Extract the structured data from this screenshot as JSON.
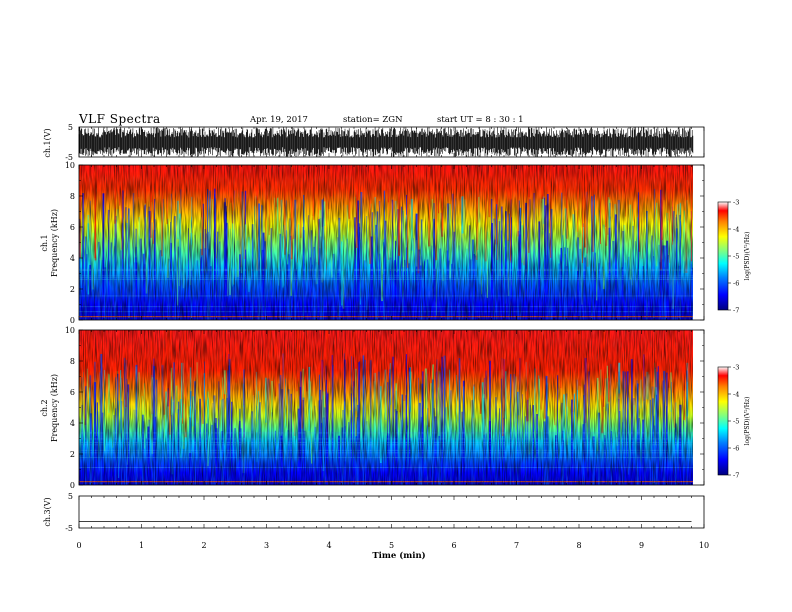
{
  "header": {
    "title": "VLF Spectra",
    "date": "Apr. 19, 2017",
    "station": "station= ZGN",
    "start": "start  UT  =   8 : 30 : 1"
  },
  "colors": {
    "spectrogram_scale": [
      "#00007f",
      "#0000ff",
      "#0080ff",
      "#00ffff",
      "#80ff80",
      "#ffff00",
      "#ff8000",
      "#ff0000"
    ]
  },
  "chart_data": [
    {
      "type": "line",
      "panel": "waveform-ch1",
      "ylabel": "ch.1(V)",
      "ylim": [
        -5,
        5
      ],
      "y_ticks": [
        "5",
        "-5"
      ],
      "x_range_min": [
        0,
        10
      ],
      "description_series": "dense noise waveform, amplitude roughly -5 to 5 V"
    },
    {
      "type": "heatmap",
      "panel": "spectrogram-ch1",
      "ylabel": "ch.1 Frequency (kHz)",
      "ylim": [
        0,
        10
      ],
      "y_ticks": [
        "0",
        "2",
        "4",
        "6",
        "8",
        "10"
      ],
      "xlim": [
        0,
        10
      ],
      "colorbar": {
        "label": "log(PSD)(V²/Hz)",
        "range": [
          -7,
          -3
        ],
        "ticks": [
          "-3",
          "-4",
          "-5",
          "-6",
          "-7"
        ]
      }
    },
    {
      "type": "heatmap",
      "panel": "spectrogram-ch2",
      "ylabel": "ch.2 Frequency (kHz)",
      "ylim": [
        0,
        10
      ],
      "y_ticks": [
        "0",
        "2",
        "4",
        "6",
        "8",
        "10"
      ],
      "xlim": [
        0,
        10
      ],
      "colorbar": {
        "label": "log(PSD)(V²/Hz)",
        "range": [
          -7,
          -3
        ],
        "ticks": [
          "-3",
          "-4",
          "-5",
          "-6",
          "-7"
        ]
      }
    },
    {
      "type": "line",
      "panel": "waveform-ch3",
      "ylabel": "ch.3(V)",
      "ylim": [
        -5,
        5
      ],
      "y_ticks": [
        "5",
        "-5"
      ],
      "series": [
        {
          "x": [
            0,
            9.8
          ],
          "y": [
            -3,
            -3
          ]
        }
      ]
    }
  ],
  "xaxis": {
    "label": "Time  (min)",
    "ticks": [
      "0",
      "1",
      "2",
      "3",
      "4",
      "5",
      "6",
      "7",
      "8",
      "9",
      "10"
    ],
    "range": [
      0,
      10
    ]
  },
  "labels": {
    "ch1_volt": "ch.1(V)",
    "ch1_freq_line1": "ch.1",
    "ch1_freq_line2": "Frequency  (kHz)",
    "ch2_freq_line1": "ch.2",
    "ch2_freq_line2": "Frequency  (kHz)",
    "ch3_volt": "ch.3(V)",
    "colorbar_label": "log(PSD)(V²/Hz)"
  }
}
